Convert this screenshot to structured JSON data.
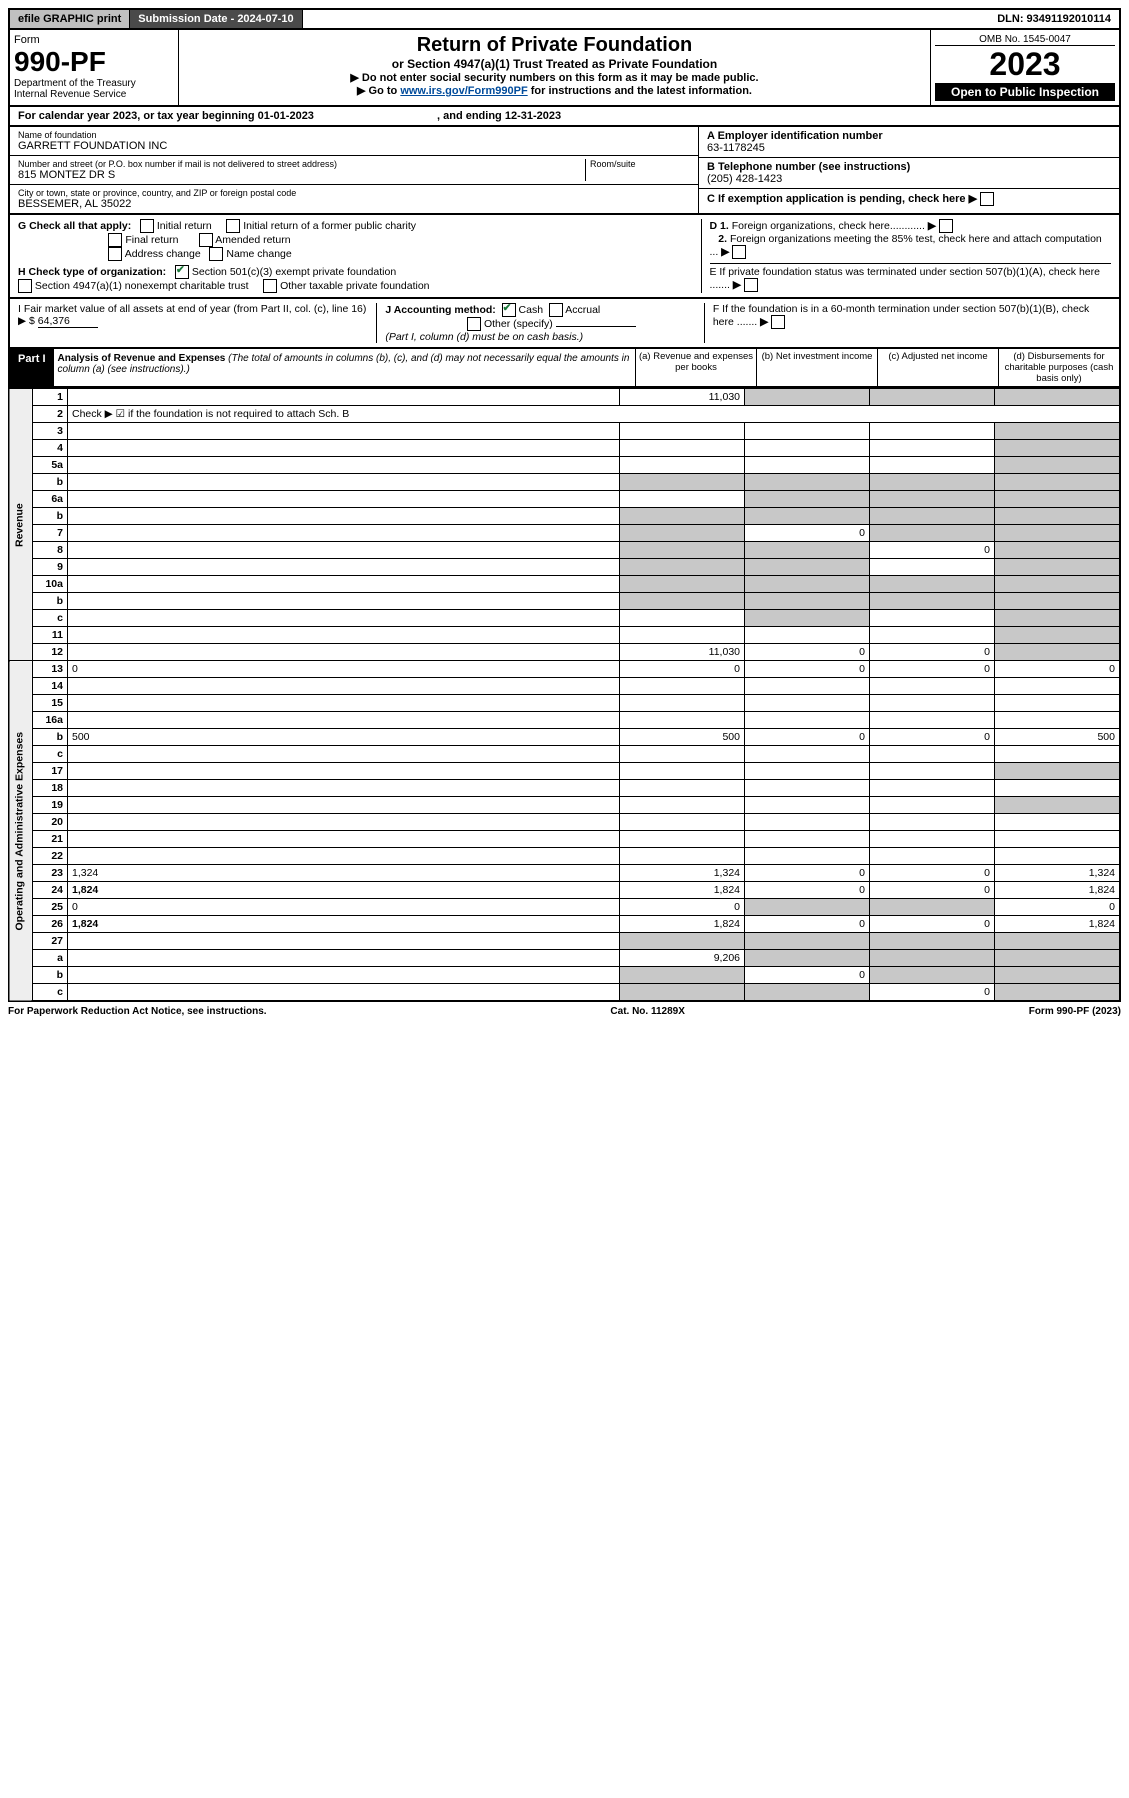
{
  "topbar": {
    "efile": "efile GRAPHIC print",
    "subdate_label": "Submission Date - 2024-07-10",
    "dln": "DLN: 93491192010114"
  },
  "header": {
    "form_word": "Form",
    "form_no": "990-PF",
    "dept": "Department of the Treasury",
    "irs": "Internal Revenue Service",
    "main_title": "Return of Private Foundation",
    "subtitle": "or Section 4947(a)(1) Trust Treated as Private Foundation",
    "instr1": "▶ Do not enter social security numbers on this form as it may be made public.",
    "instr2_pre": "▶ Go to ",
    "instr2_link": "www.irs.gov/Form990PF",
    "instr2_post": " for instructions and the latest information.",
    "omb": "OMB No. 1545-0047",
    "year": "2023",
    "open": "Open to Public Inspection"
  },
  "calyear": {
    "text_pre": "For calendar year 2023, or tax year beginning ",
    "begin": "01-01-2023",
    "text_mid": " , and ending ",
    "end": "12-31-2023"
  },
  "id": {
    "name_label": "Name of foundation",
    "name": "GARRETT FOUNDATION INC",
    "addr_label": "Number and street (or P.O. box number if mail is not delivered to street address)",
    "room_label": "Room/suite",
    "addr": "815 MONTEZ DR S",
    "city_label": "City or town, state or province, country, and ZIP or foreign postal code",
    "city": "BESSEMER, AL  35022",
    "ein_label": "A Employer identification number",
    "ein": "63-1178245",
    "phone_label": "B Telephone number (see instructions)",
    "phone": "(205) 428-1423",
    "c_label": "C If exemption application is pending, check here",
    "d1": "D 1. Foreign organizations, check here............",
    "d2": "2. Foreign organizations meeting the 85% test, check here and attach computation ...",
    "e_label": "E  If private foundation status was terminated under section 507(b)(1)(A), check here .......",
    "f_label": "F  If the foundation is in a 60-month termination under section 507(b)(1)(B), check here .......",
    "g_label": "G Check all that apply:",
    "g_initial": "Initial return",
    "g_initial_former": "Initial return of a former public charity",
    "g_final": "Final return",
    "g_amended": "Amended return",
    "g_address": "Address change",
    "g_name": "Name change",
    "h_label": "H Check type of organization:",
    "h_501c3": "Section 501(c)(3) exempt private foundation",
    "h_4947": "Section 4947(a)(1) nonexempt charitable trust",
    "h_other": "Other taxable private foundation",
    "i_label": "I Fair market value of all assets at end of year (from Part II, col. (c), line 16) ▶ $",
    "i_value": "64,376",
    "j_label": "J Accounting method:",
    "j_cash": "Cash",
    "j_accrual": "Accrual",
    "j_other": "Other (specify)",
    "j_note": "(Part I, column (d) must be on cash basis.)"
  },
  "part1": {
    "label": "Part I",
    "title": "Analysis of Revenue and Expenses",
    "note": "(The total of amounts in columns (b), (c), and (d) may not necessarily equal the amounts in column (a) (see instructions).)",
    "col_a": "(a) Revenue and expenses per books",
    "col_b": "(b) Net investment income",
    "col_c": "(c) Adjusted net income",
    "col_d": "(d) Disbursements for charitable purposes (cash basis only)"
  },
  "side_labels": {
    "revenue": "Revenue",
    "expenses": "Operating and Administrative Expenses"
  },
  "rows": [
    {
      "n": "1",
      "d": "",
      "a": "11,030",
      "b": "",
      "c": "",
      "grey": [
        "b",
        "c",
        "d"
      ]
    },
    {
      "n": "2",
      "d": "Check ▶ ☑ if the foundation is not required to attach Sch. B",
      "nocols": true
    },
    {
      "n": "3",
      "d": "",
      "a": "",
      "b": "",
      "c": "",
      "grey": [
        "d"
      ]
    },
    {
      "n": "4",
      "d": "",
      "a": "",
      "b": "",
      "c": "",
      "grey": [
        "d"
      ]
    },
    {
      "n": "5a",
      "d": "",
      "a": "",
      "b": "",
      "c": "",
      "grey": [
        "d"
      ]
    },
    {
      "n": "b",
      "d": "",
      "a": "",
      "b": "",
      "c": "",
      "grey": [
        "a",
        "b",
        "c",
        "d"
      ]
    },
    {
      "n": "6a",
      "d": "",
      "a": "",
      "b": "",
      "c": "",
      "grey": [
        "b",
        "c",
        "d"
      ]
    },
    {
      "n": "b",
      "d": "",
      "a": "",
      "b": "",
      "c": "",
      "grey": [
        "a",
        "b",
        "c",
        "d"
      ]
    },
    {
      "n": "7",
      "d": "",
      "a": "",
      "b": "0",
      "c": "",
      "grey": [
        "a",
        "c",
        "d"
      ]
    },
    {
      "n": "8",
      "d": "",
      "a": "",
      "b": "",
      "c": "0",
      "grey": [
        "a",
        "b",
        "d"
      ]
    },
    {
      "n": "9",
      "d": "",
      "a": "",
      "b": "",
      "c": "",
      "grey": [
        "a",
        "b",
        "d"
      ]
    },
    {
      "n": "10a",
      "d": "",
      "a": "",
      "b": "",
      "c": "",
      "grey": [
        "a",
        "b",
        "c",
        "d"
      ]
    },
    {
      "n": "b",
      "d": "",
      "a": "",
      "b": "",
      "c": "",
      "grey": [
        "a",
        "b",
        "c",
        "d"
      ]
    },
    {
      "n": "c",
      "d": "",
      "a": "",
      "b": "",
      "c": "",
      "grey": [
        "b",
        "d"
      ]
    },
    {
      "n": "11",
      "d": "",
      "a": "",
      "b": "",
      "c": "",
      "grey": [
        "d"
      ]
    },
    {
      "n": "12",
      "d": "",
      "a": "11,030",
      "b": "0",
      "c": "0",
      "grey": [
        "d"
      ],
      "bold": true
    },
    {
      "n": "13",
      "d": "0",
      "a": "0",
      "b": "0",
      "c": "0"
    },
    {
      "n": "14",
      "d": "",
      "a": "",
      "b": "",
      "c": ""
    },
    {
      "n": "15",
      "d": "",
      "a": "",
      "b": "",
      "c": ""
    },
    {
      "n": "16a",
      "d": "",
      "a": "",
      "b": "",
      "c": ""
    },
    {
      "n": "b",
      "d": "500",
      "a": "500",
      "b": "0",
      "c": "0"
    },
    {
      "n": "c",
      "d": "",
      "a": "",
      "b": "",
      "c": ""
    },
    {
      "n": "17",
      "d": "",
      "a": "",
      "b": "",
      "c": "",
      "grey": [
        "d"
      ]
    },
    {
      "n": "18",
      "d": "",
      "a": "",
      "b": "",
      "c": ""
    },
    {
      "n": "19",
      "d": "",
      "a": "",
      "b": "",
      "c": "",
      "grey": [
        "d"
      ]
    },
    {
      "n": "20",
      "d": "",
      "a": "",
      "b": "",
      "c": ""
    },
    {
      "n": "21",
      "d": "",
      "a": "",
      "b": "",
      "c": ""
    },
    {
      "n": "22",
      "d": "",
      "a": "",
      "b": "",
      "c": ""
    },
    {
      "n": "23",
      "d": "1,324",
      "a": "1,324",
      "b": "0",
      "c": "0"
    },
    {
      "n": "24",
      "d": "1,824",
      "a": "1,824",
      "b": "0",
      "c": "0",
      "bold": true
    },
    {
      "n": "25",
      "d": "0",
      "a": "0",
      "b": "",
      "c": "",
      "grey": [
        "b",
        "c"
      ]
    },
    {
      "n": "26",
      "d": "1,824",
      "a": "1,824",
      "b": "0",
      "c": "0",
      "bold": true
    },
    {
      "n": "27",
      "d": "",
      "a": "",
      "b": "",
      "c": "",
      "grey": [
        "a",
        "b",
        "c",
        "d"
      ]
    },
    {
      "n": "a",
      "d": "",
      "a": "9,206",
      "b": "",
      "c": "",
      "grey": [
        "b",
        "c",
        "d"
      ],
      "bold": true
    },
    {
      "n": "b",
      "d": "",
      "a": "",
      "b": "0",
      "c": "",
      "grey": [
        "a",
        "c",
        "d"
      ],
      "bold": true
    },
    {
      "n": "c",
      "d": "",
      "a": "",
      "b": "",
      "c": "0",
      "grey": [
        "a",
        "b",
        "d"
      ],
      "bold": true
    }
  ],
  "footer": {
    "left": "For Paperwork Reduction Act Notice, see instructions.",
    "mid": "Cat. No. 11289X",
    "right": "Form 990-PF (2023)"
  }
}
